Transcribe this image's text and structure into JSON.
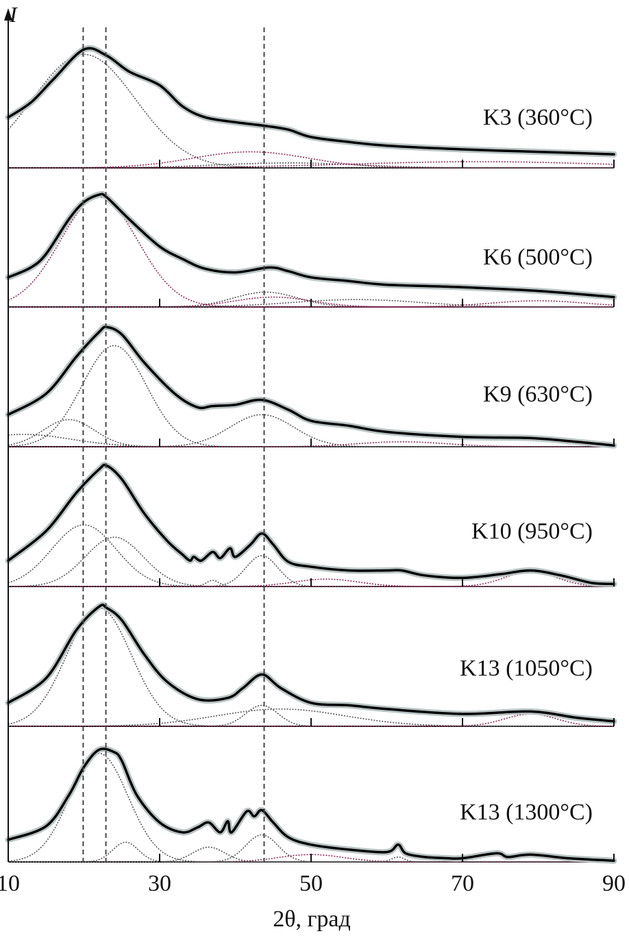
{
  "chart_data": {
    "type": "line",
    "title": "",
    "xlabel": "2θ, град",
    "ylabel": "I",
    "xlim": [
      10,
      90
    ],
    "x_ticks": [
      "10",
      "30",
      "50",
      "70",
      "90"
    ],
    "grid": false,
    "reference_lines_x": [
      19.9,
      22.9,
      43.8
    ],
    "colors": {
      "measured": "#b9c3c3",
      "fit": "#000000",
      "component_grey": "#555555",
      "component_purple": "#8a2a5a"
    },
    "series": [
      {
        "name": "K3 (360°C)",
        "x": [
          10,
          13,
          16,
          20,
          23,
          26,
          30,
          33,
          36,
          40,
          44,
          47,
          50,
          55,
          60,
          70,
          80,
          90
        ],
        "y": [
          41,
          53,
          72,
          96,
          91,
          78,
          67,
          50,
          41,
          37,
          34,
          31,
          25,
          21,
          18,
          15,
          13,
          11
        ],
        "components": [
          {
            "center": 20,
            "height": 92,
            "fwhm": 16,
            "color": "grey"
          },
          {
            "center": 42,
            "height": 13,
            "fwhm": 18,
            "color": "purple"
          },
          {
            "center": 47,
            "height": 4,
            "fwhm": 22,
            "color": "grey"
          },
          {
            "center": 72,
            "height": 5,
            "fwhm": 40,
            "color": "purple"
          }
        ]
      },
      {
        "name": "K6 (500°C)",
        "x": [
          10,
          13,
          15,
          18,
          20,
          22,
          23,
          26,
          30,
          33,
          36,
          40,
          44.5,
          47,
          50,
          55,
          60,
          70,
          80,
          90
        ],
        "y": [
          24,
          32,
          43,
          71,
          85,
          91,
          89,
          71,
          49,
          39,
          31,
          28,
          32,
          29,
          24,
          21,
          18,
          16,
          13,
          8
        ],
        "components": [
          {
            "center": 22,
            "height": 89,
            "fwhm": 12,
            "color": "purple"
          },
          {
            "center": 44,
            "height": 12,
            "fwhm": 10,
            "color": "grey"
          },
          {
            "center": 45,
            "height": 8,
            "fwhm": 12,
            "color": "purple"
          },
          {
            "center": 56,
            "height": 6,
            "fwhm": 20,
            "color": "grey"
          },
          {
            "center": 80,
            "height": 5,
            "fwhm": 15,
            "color": "purple"
          }
        ]
      },
      {
        "name": "K9 (630°C)",
        "x": [
          10,
          15,
          19,
          22,
          23,
          25,
          28,
          32,
          35,
          37,
          40,
          43.5,
          47,
          50,
          55,
          60,
          70,
          79,
          85,
          90
        ],
        "y": [
          26,
          43,
          73,
          93,
          97,
          91,
          68,
          43,
          32,
          33,
          34,
          38,
          30,
          21,
          17,
          12,
          8,
          7,
          4,
          1
        ],
        "components": [
          {
            "center": 24,
            "height": 82,
            "fwhm": 10,
            "color": "grey"
          },
          {
            "center": 18,
            "height": 22,
            "fwhm": 8,
            "color": "grey"
          },
          {
            "center": 43.5,
            "height": 26,
            "fwhm": 10,
            "color": "grey"
          },
          {
            "center": 12,
            "height": 10,
            "fwhm": 15,
            "color": "grey"
          },
          {
            "center": 62,
            "height": 4,
            "fwhm": 14,
            "color": "purple"
          }
        ]
      },
      {
        "name": "K10 (950°C)",
        "x": [
          10,
          15,
          19,
          22,
          23,
          25,
          28,
          31,
          33,
          34,
          34.5,
          35.5,
          37,
          38,
          39.3,
          40,
          42,
          43.5,
          45,
          47,
          50,
          55,
          60,
          62,
          65,
          70,
          75,
          79,
          83,
          87,
          90
        ],
        "y": [
          21,
          45,
          76,
          95,
          98,
          87,
          59,
          37,
          26,
          21,
          24,
          21,
          28,
          23,
          31,
          24,
          34,
          43,
          34,
          20,
          16,
          13,
          13,
          13,
          9,
          7,
          10,
          13,
          9,
          3,
          2
        ],
        "components": [
          {
            "center": 20,
            "height": 50,
            "fwhm": 10,
            "color": "grey"
          },
          {
            "center": 24,
            "height": 40,
            "fwhm": 9,
            "color": "grey"
          },
          {
            "center": 43.5,
            "height": 25,
            "fwhm": 5,
            "color": "grey"
          },
          {
            "center": 37,
            "height": 5,
            "fwhm": 2,
            "color": "grey"
          },
          {
            "center": 52,
            "height": 6,
            "fwhm": 10,
            "color": "purple"
          },
          {
            "center": 79,
            "height": 12,
            "fwhm": 8,
            "color": "purple"
          }
        ]
      },
      {
        "name": "K13 (1050°C)",
        "x": [
          10,
          15,
          19,
          22,
          23,
          25,
          28,
          31,
          35,
          39,
          41,
          43.5,
          46,
          50,
          55,
          60,
          70,
          79,
          85,
          90
        ],
        "y": [
          19,
          39,
          78,
          97,
          96,
          86,
          58,
          36,
          22,
          23,
          31,
          42,
          31,
          19,
          17,
          14,
          10,
          12,
          7,
          4
        ],
        "components": [
          {
            "center": 22,
            "height": 96,
            "fwhm": 10,
            "color": "grey"
          },
          {
            "center": 43.5,
            "height": 17,
            "fwhm": 5,
            "color": "grey"
          },
          {
            "center": 46,
            "height": 14,
            "fwhm": 20,
            "color": "grey"
          },
          {
            "center": 79,
            "height": 10,
            "fwhm": 8,
            "color": "purple"
          }
        ]
      },
      {
        "name": "K13 (1300°C)",
        "x": [
          10,
          15,
          18,
          20,
          22,
          24,
          25,
          27,
          30,
          33,
          35,
          36.5,
          38,
          39,
          39.5,
          41.5,
          42.5,
          43.5,
          45,
          47,
          50,
          55,
          60,
          61.5,
          62.5,
          65,
          68,
          70,
          74.5,
          76,
          79,
          84,
          90
        ],
        "y": [
          18,
          29,
          54,
          77,
          91,
          89,
          82,
          54,
          32,
          24,
          28,
          32,
          24,
          33,
          24,
          41,
          37,
          42,
          32,
          20,
          14,
          10,
          8,
          14,
          7,
          4,
          3,
          3,
          7,
          4,
          6,
          3,
          1
        ],
        "components": [
          {
            "center": 22,
            "height": 88,
            "fwhm": 9,
            "color": "grey"
          },
          {
            "center": 25.5,
            "height": 16,
            "fwhm": 4,
            "color": "grey"
          },
          {
            "center": 36.5,
            "height": 12,
            "fwhm": 5,
            "color": "grey"
          },
          {
            "center": 43.5,
            "height": 22,
            "fwhm": 5,
            "color": "grey"
          },
          {
            "center": 50,
            "height": 6,
            "fwhm": 10,
            "color": "purple"
          },
          {
            "center": 61.5,
            "height": 4,
            "fwhm": 2,
            "color": "grey"
          }
        ]
      }
    ]
  }
}
